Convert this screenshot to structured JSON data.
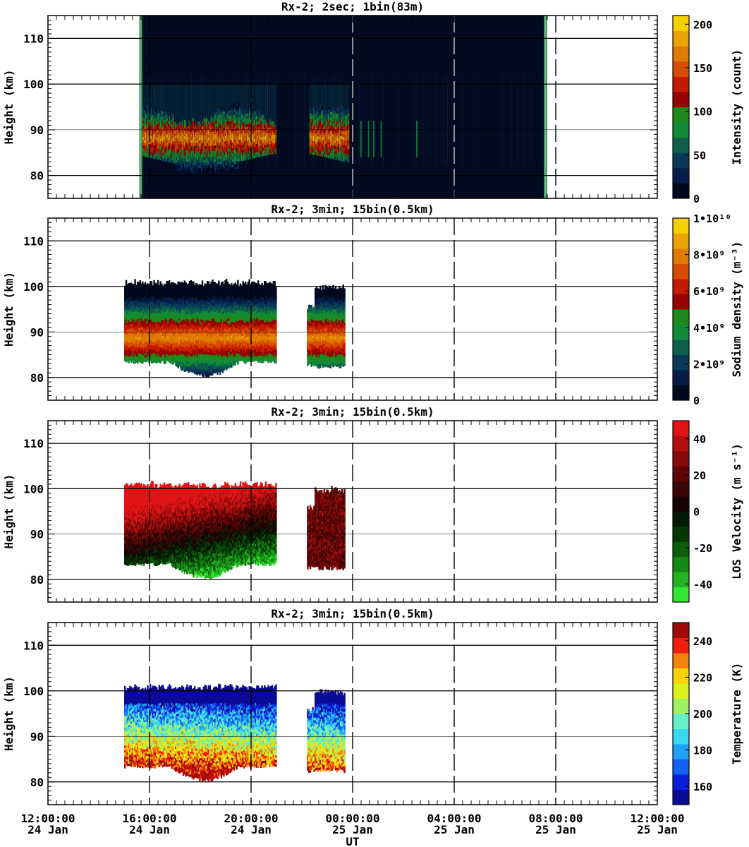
{
  "chart_data": [
    {
      "type": "heatmap",
      "title": "Rx-2;  2sec; 1bin(83m)",
      "ylabel": "Height (km)",
      "ylim": [
        75,
        115
      ],
      "yticks": [
        80,
        90,
        100,
        110
      ],
      "colorbar_label": "Intensity (count)",
      "colorbar_ticks": [
        "0",
        "50",
        "100",
        "150",
        "200"
      ],
      "colorbar_range": [
        0,
        210
      ],
      "colorbar_colors": [
        "#000a1e",
        "#061d4a",
        "#0b3a58",
        "#0d5e4a",
        "#138a3a",
        "#1e8a1a",
        "#990000",
        "#c41c00",
        "#d84c00",
        "#e07a00",
        "#eaa400",
        "#f5d000"
      ],
      "data_window_ut_hours": [
        15.6,
        31.65
      ],
      "layer_ut_hours": [
        [
          15.6,
          21.0
        ],
        [
          22.3,
          23.85
        ]
      ],
      "layer_height_km": [
        83,
        93
      ]
    },
    {
      "type": "heatmap",
      "title": "Rx-2; 3min; 15bin(0.5km)",
      "ylabel": "Height (km)",
      "ylim": [
        75,
        115
      ],
      "yticks": [
        80,
        90,
        100,
        110
      ],
      "colorbar_label": "Sodium density (m⁻³)",
      "colorbar_ticks": [
        "0",
        "2•10⁹",
        "4•10⁹",
        "6•10⁹",
        "8•10⁹",
        "1•10¹⁰"
      ],
      "colorbar_range": [
        0,
        10000000000
      ],
      "colorbar_colors": [
        "#000a1e",
        "#061d4a",
        "#0b3a58",
        "#0d5e4a",
        "#138a3a",
        "#1e8a1a",
        "#990000",
        "#c41c00",
        "#d84c00",
        "#e07a00",
        "#eaa400",
        "#f5d000"
      ],
      "data_ut_hours": [
        [
          15.0,
          21.0
        ],
        [
          22.2,
          23.7
        ]
      ],
      "layer_height_km": [
        80,
        100
      ]
    },
    {
      "type": "heatmap",
      "title": "Rx-2; 3min; 15bin(0.5km)",
      "ylabel": "Height (km)",
      "ylim": [
        75,
        115
      ],
      "yticks": [
        80,
        90,
        100,
        110
      ],
      "colorbar_label": "LOS Velocity (m s⁻¹)",
      "colorbar_ticks": [
        "-40",
        "-20",
        "0",
        "20",
        "40"
      ],
      "colorbar_range": [
        -50,
        50
      ],
      "colorbar_colors": [
        "#33e633",
        "#22b322",
        "#138a13",
        "#0a5e0a",
        "#053805",
        "#031a03",
        "#1a0303",
        "#3d0505",
        "#5e0505",
        "#880a0a",
        "#b30f0f",
        "#e01414"
      ],
      "data_ut_hours": [
        [
          15.0,
          21.0
        ],
        [
          22.2,
          23.7
        ]
      ],
      "layer_height_km": [
        80,
        100
      ]
    },
    {
      "type": "heatmap",
      "title": "Rx-2; 3min; 15bin(0.5km)",
      "xlabel": "UT",
      "ylabel": "Height (km)",
      "ylim": [
        75,
        115
      ],
      "yticks": [
        80,
        90,
        100,
        110
      ],
      "colorbar_label": "Temperature (K)",
      "colorbar_ticks": [
        "160",
        "180",
        "200",
        "220",
        "240"
      ],
      "colorbar_range": [
        150,
        250
      ],
      "colorbar_colors": [
        "#0a0a96",
        "#0a1edc",
        "#1460f0",
        "#1ea0f5",
        "#3cd7f0",
        "#64f0c8",
        "#a0f064",
        "#dcf01e",
        "#fad20a",
        "#f5820a",
        "#f01e0a",
        "#a00a0a"
      ],
      "data_ut_hours": [
        [
          15.0,
          21.0
        ],
        [
          22.2,
          23.7
        ]
      ],
      "layer_height_km": [
        80,
        100
      ]
    }
  ],
  "xaxis": {
    "xlim_ut_hours": [
      12,
      36
    ],
    "tick_hours": [
      12,
      16,
      20,
      24,
      28,
      32,
      36
    ],
    "tick_time_labels": [
      "12:00:00",
      "16:00:00",
      "20:00:00",
      "00:00:00",
      "04:00:00",
      "08:00:00",
      "12:00:00"
    ],
    "tick_date_labels": [
      "24 Jan",
      "24 Jan",
      "24 Jan",
      "25 Jan",
      "25 Jan",
      "25 Jan",
      "25 Jan"
    ],
    "label": "UT"
  }
}
